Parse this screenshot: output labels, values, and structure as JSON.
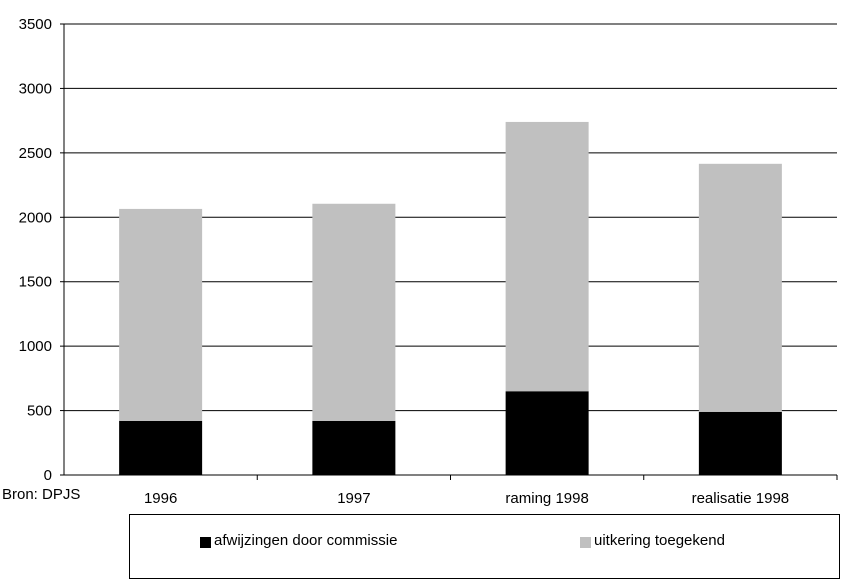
{
  "chart_data": {
    "type": "bar",
    "stacked": true,
    "categories": [
      "1996",
      "1997",
      "raming 1998",
      "realisatie 1998"
    ],
    "series": [
      {
        "name": "afwijzingen door commissie",
        "color": "#000000",
        "values": [
          420,
          420,
          650,
          490
        ]
      },
      {
        "name": "uitkering toegekend",
        "color": "#c0c0c0",
        "values": [
          1645,
          1685,
          2090,
          1925
        ]
      }
    ],
    "ylim": [
      0,
      3500
    ],
    "yticks": [
      0,
      500,
      1000,
      1500,
      2000,
      2500,
      3000,
      3500
    ],
    "grid": true,
    "legend_position": "bottom",
    "source": "Bron: DPJS"
  }
}
